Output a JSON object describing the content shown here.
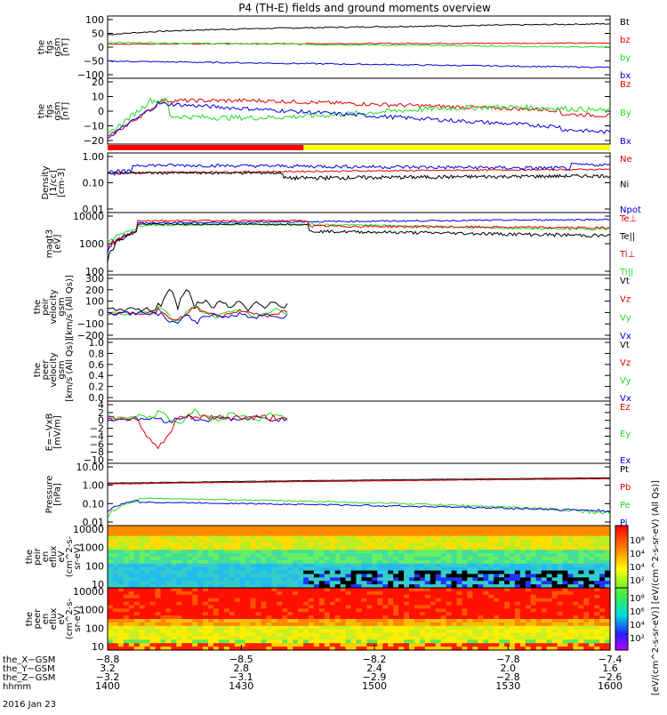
{
  "title": "P4 (TH-E) fields and ground moments overview",
  "colors": {
    "black": "#000000",
    "red": "#e00000",
    "green": "#22dd22",
    "blue": "#0000dd",
    "yellow": "#ffff00",
    "sun_red": "#ff0000",
    "frame": "#000000"
  },
  "chart_data": [
    {
      "type": "line",
      "ylabel": [
        "the",
        "fgs",
        "gsm",
        "[nT]"
      ],
      "y_ticks": [
        "100",
        "50",
        "0",
        "−50",
        "−100"
      ],
      "ylim": [
        -100,
        100
      ],
      "legend": [
        {
          "label": "Bt",
          "color": "#000000"
        },
        {
          "label": "bz",
          "color": "#e00000"
        },
        {
          "label": "by",
          "color": "#22dd22"
        },
        {
          "label": "bx",
          "color": "#0000dd"
        }
      ]
    },
    {
      "type": "line",
      "ylabel": [
        "the",
        "fgs",
        "gsm",
        "[nT]"
      ],
      "y_ticks": [
        "20",
        "10",
        "0",
        "−10",
        "−20"
      ],
      "ylim": [
        -25,
        25
      ],
      "legend": [
        {
          "label": "Bz",
          "color": "#e00000"
        },
        {
          "label": "By",
          "color": "#22dd22"
        },
        {
          "label": "Bx",
          "color": "#0000dd"
        }
      ]
    },
    {
      "type": "line",
      "ylabel": [
        "Density",
        "[1/cc]",
        "[cm-3]"
      ],
      "y_ticks": [
        "1.00",
        "0.10",
        "0.01"
      ],
      "scale": "log",
      "ylim": [
        0.01,
        1.5
      ],
      "legend": [
        {
          "label": "Ne",
          "color": "#e00000"
        },
        {
          "label": "Ni",
          "color": "#000000"
        },
        {
          "label": "Npot",
          "color": "#0000dd"
        }
      ]
    },
    {
      "type": "line",
      "ylabel": [
        "magt3",
        "[eV]"
      ],
      "y_ticks": [
        "10000",
        "1000",
        "100"
      ],
      "scale": "log",
      "ylim": [
        100,
        10000
      ],
      "legend": [
        {
          "label": "Te⊥",
          "color": "#e00000"
        },
        {
          "label": "Te||",
          "color": "#000000"
        },
        {
          "label": "Ti⊥",
          "color": "#e00000"
        },
        {
          "label": "Ti||",
          "color": "#22dd22"
        }
      ]
    },
    {
      "type": "line",
      "ylabel": [
        "the",
        "peir",
        "velocity",
        "gsm",
        "[km/s (All Qs)]"
      ],
      "y_ticks": [
        "300",
        "200",
        "100",
        "0",
        "−100",
        "−200"
      ],
      "ylim": [
        -200,
        300
      ],
      "legend": [
        {
          "label": "Vt",
          "color": "#000000"
        },
        {
          "label": "Vz",
          "color": "#e00000"
        },
        {
          "label": "Vy",
          "color": "#22dd22"
        },
        {
          "label": "Vx",
          "color": "#0000dd"
        }
      ]
    },
    {
      "type": "line",
      "ylabel": [
        "the",
        "peer",
        "velocity",
        "gsm",
        "[km/s (All Qs)]"
      ],
      "y_ticks": [
        "1.0",
        "0.8",
        "0.6",
        "0.4",
        "0.2",
        "0.0"
      ],
      "ylim": [
        0,
        1
      ],
      "legend": [
        {
          "label": "Vt",
          "color": "#000000"
        },
        {
          "label": "Vz",
          "color": "#e00000"
        },
        {
          "label": "Vy",
          "color": "#22dd22"
        },
        {
          "label": "Vx",
          "color": "#0000dd"
        }
      ]
    },
    {
      "type": "line",
      "ylabel": [
        "E=−VxB",
        "[mV/m]"
      ],
      "y_ticks": [
        "4",
        "2",
        "0",
        "−2",
        "−4",
        "−6",
        "−8",
        "−10"
      ],
      "ylim": [
        -10,
        4
      ],
      "legend": [
        {
          "label": "Ez",
          "color": "#e00000"
        },
        {
          "label": "Ey",
          "color": "#22dd22"
        },
        {
          "label": "Ex",
          "color": "#0000dd"
        }
      ]
    },
    {
      "type": "line",
      "ylabel": [
        "Pressure",
        "[nPa]"
      ],
      "y_ticks": [
        "10.00",
        "1.00",
        "0.10",
        "0.01"
      ],
      "scale": "log",
      "ylim": [
        0.01,
        10
      ],
      "legend": [
        {
          "label": "Pt",
          "color": "#000000"
        },
        {
          "label": "Pb",
          "color": "#e00000"
        },
        {
          "label": "Pe",
          "color": "#22dd22"
        },
        {
          "label": "Pi",
          "color": "#0000dd"
        }
      ]
    },
    {
      "type": "heatmap",
      "ylabel": [
        "the",
        "peir",
        "en",
        "eflux",
        "eV",
        "(cm^2-s-",
        "sr-eV)"
      ],
      "y_ticks": [
        "10000",
        "1000",
        "100",
        "10"
      ],
      "scale": "log"
    },
    {
      "type": "heatmap",
      "ylabel": [
        "the",
        "peer",
        "en",
        "eflux",
        "eV",
        "(cm^2-s-",
        "sr-eV)"
      ],
      "y_ticks": [
        "10000",
        "1000",
        "100",
        "10"
      ],
      "scale": "log"
    }
  ],
  "colorbar": {
    "label": "[eV/(cm^2-s-sr-eV)] [eV/(cm^2-s-sr-eV) (All Qs)]",
    "ticks_upper": [
      "10⁸",
      "10⁴",
      "10⁴",
      "10²"
    ],
    "ticks_lower": [
      "10⁸",
      "10⁶",
      "10⁴",
      "10²"
    ]
  },
  "x_axis": {
    "rows": [
      {
        "label": "the_X−GSM",
        "values": [
          "−8.8",
          "−8.5",
          "−8.2",
          "−7.8",
          "−7.4"
        ]
      },
      {
        "label": "the_Y−GSM",
        "values": [
          "3.2",
          "2.8",
          "2.4",
          "2.0",
          "1.6"
        ]
      },
      {
        "label": "the_Z−GSM",
        "values": [
          "−3.2",
          "−3.1",
          "−2.9",
          "−2.8",
          "−2.6"
        ]
      },
      {
        "label": "hhmm",
        "values": [
          "1400",
          "1430",
          "1500",
          "1530",
          "1600"
        ]
      }
    ],
    "date": "2016 Jan 23"
  }
}
